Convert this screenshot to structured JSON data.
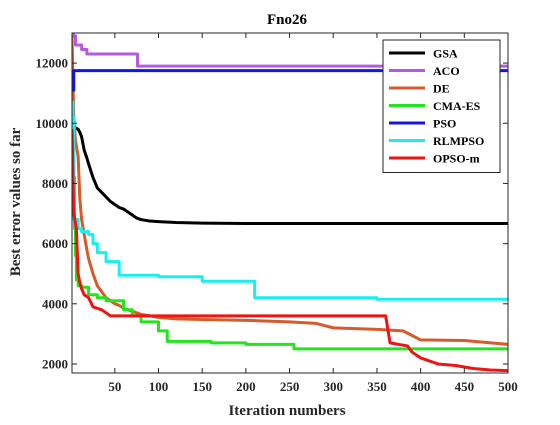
{
  "chart_data": {
    "type": "line",
    "title": "Fno26",
    "xlabel": "Iteration numbers",
    "ylabel": "Best error values so far",
    "xlim": [
      1,
      500
    ],
    "ylim": [
      1700,
      13000
    ],
    "xticks": [
      50,
      100,
      150,
      200,
      250,
      300,
      350,
      400,
      450,
      500
    ],
    "yticks": [
      2000,
      4000,
      6000,
      8000,
      10000,
      12000
    ],
    "xtick_labels": [
      "50",
      "100",
      "150",
      "200",
      "250",
      "300",
      "350",
      "400",
      "450",
      "500"
    ],
    "ytick_labels": [
      "2000",
      "4000",
      "6000",
      "8000",
      "10000",
      "12000"
    ],
    "grid": false,
    "legend_position": "top-right",
    "series": [
      {
        "name": "GSA",
        "color": "#000000",
        "step": false,
        "x": [
          1,
          3,
          5,
          8,
          10,
          12,
          15,
          18,
          20,
          25,
          30,
          35,
          40,
          45,
          50,
          55,
          60,
          65,
          70,
          75,
          80,
          90,
          100,
          120,
          150,
          200,
          300,
          400,
          500
        ],
        "y": [
          11000,
          9800,
          9850,
          9800,
          9700,
          9550,
          9100,
          8850,
          8650,
          8200,
          7850,
          7700,
          7550,
          7400,
          7300,
          7200,
          7150,
          7050,
          6950,
          6850,
          6800,
          6750,
          6730,
          6700,
          6680,
          6670,
          6670,
          6670,
          6670
        ]
      },
      {
        "name": "ACO",
        "color": "#b45ae0",
        "step": true,
        "x": [
          1,
          3,
          5,
          12,
          18,
          30,
          70,
          76,
          300,
          500
        ],
        "y": [
          12950,
          12900,
          12600,
          12450,
          12300,
          12300,
          12300,
          11900,
          11900,
          11850
        ]
      },
      {
        "name": "DE",
        "color": "#d65a2a",
        "step": false,
        "x": [
          1,
          3,
          5,
          8,
          10,
          12,
          15,
          18,
          20,
          25,
          30,
          35,
          40,
          45,
          50,
          55,
          60,
          70,
          80,
          90,
          100,
          120,
          150,
          200,
          250,
          280,
          300,
          350,
          380,
          400,
          450,
          500
        ],
        "y": [
          12900,
          10200,
          9400,
          8900,
          7500,
          6800,
          6300,
          5800,
          5500,
          5000,
          4600,
          4400,
          4200,
          4100,
          4000,
          3950,
          3850,
          3750,
          3650,
          3600,
          3550,
          3500,
          3480,
          3450,
          3400,
          3350,
          3200,
          3150,
          3100,
          2800,
          2780,
          2650
        ]
      },
      {
        "name": "CMA-ES",
        "color": "#22e61c",
        "step": true,
        "x": [
          1,
          3,
          4,
          5,
          6,
          8,
          12,
          20,
          30,
          40,
          60,
          70,
          80,
          100,
          110,
          160,
          200,
          255,
          300,
          400,
          500
        ],
        "y": [
          9000,
          8200,
          6500,
          5600,
          4800,
          4600,
          4550,
          4300,
          4200,
          4100,
          3800,
          3600,
          3400,
          3100,
          2750,
          2700,
          2650,
          2500,
          2500,
          2500,
          2500
        ]
      },
      {
        "name": "PSO",
        "color": "#1016e8",
        "step": true,
        "x": [
          1,
          3,
          500
        ],
        "y": [
          11100,
          11750,
          11750
        ]
      },
      {
        "name": "RLMPSO",
        "color": "#18f0f0",
        "step": true,
        "x": [
          1,
          2,
          3,
          8,
          12,
          20,
          25,
          30,
          40,
          55,
          100,
          150,
          210,
          350,
          500
        ],
        "y": [
          10700,
          10200,
          6800,
          6500,
          6400,
          6300,
          6000,
          5700,
          5400,
          4950,
          4900,
          4750,
          4200,
          4150,
          4100
        ]
      },
      {
        "name": "OPSO-m",
        "color": "#ee1414",
        "step": false,
        "x": [
          1,
          3,
          6,
          8,
          10,
          12,
          15,
          20,
          25,
          30,
          35,
          40,
          45,
          50,
          60,
          70,
          80,
          100,
          150,
          200,
          300,
          360,
          365,
          385,
          390,
          400,
          420,
          440,
          460,
          480,
          500
        ],
        "y": [
          9800,
          7000,
          6500,
          5000,
          4700,
          4500,
          4300,
          4200,
          3900,
          3850,
          3800,
          3700,
          3600,
          3600,
          3600,
          3600,
          3600,
          3600,
          3600,
          3600,
          3600,
          3600,
          2700,
          2600,
          2400,
          2200,
          2000,
          1950,
          1850,
          1800,
          1780
        ]
      }
    ]
  }
}
